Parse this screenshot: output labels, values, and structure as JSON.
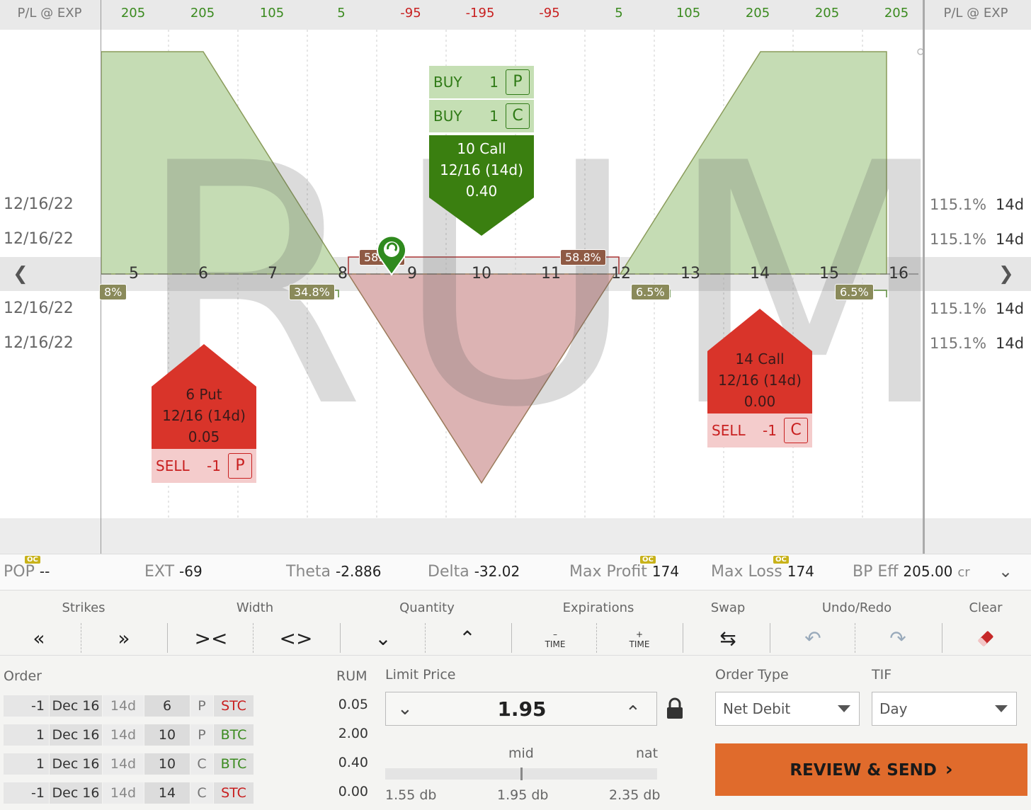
{
  "chart": {
    "pl_label_left": "P/L @ EXP",
    "pl_label_right": "P/L @ EXP",
    "pl_values": [
      "205",
      "205",
      "105",
      "5",
      "-95",
      "-195",
      "-95",
      "5",
      "105",
      "205",
      "205",
      "205"
    ],
    "pl_signs": [
      "pos",
      "pos",
      "pos",
      "pos",
      "neg",
      "neg",
      "neg",
      "pos",
      "pos",
      "pos",
      "pos",
      "pos"
    ],
    "strikes": [
      "5",
      "6",
      "7",
      "8",
      "9",
      "10",
      "11",
      "12",
      "13",
      "14",
      "15",
      "16"
    ],
    "watermark": "RUM",
    "expirations": [
      {
        "date": "12/16/22",
        "iv": "115.1%",
        "dte": "14d"
      },
      {
        "date": "12/16/22",
        "iv": "115.1%",
        "dte": "14d"
      },
      {
        "date": "12/16/22",
        "iv": "115.1%",
        "dte": "14d"
      },
      {
        "date": "12/16/22",
        "iv": "115.1%",
        "dte": "14d"
      }
    ],
    "prob_badges": {
      "left_cut": "8%",
      "left_inner": "34.8%",
      "mid_left": "58.8%",
      "mid_right": "58.8%",
      "right_inner": "6.5%",
      "right_outer": "6.5%"
    },
    "colors": {
      "profit": "#c5dcb4",
      "loss": "#dcb3b3",
      "buy": "#3a7f10",
      "sell": "#d9342a"
    }
  },
  "legs": {
    "top": {
      "rows": [
        {
          "action": "BUY",
          "qty": "1",
          "type": "P"
        },
        {
          "action": "BUY",
          "qty": "1",
          "type": "C"
        }
      ],
      "line1": "10 Call",
      "line2": "12/16 (14d)",
      "line3": "0.40"
    },
    "put": {
      "line1": "6 Put",
      "line2": "12/16 (14d)",
      "line3": "0.05",
      "action": "SELL",
      "qty": "-1",
      "type": "P"
    },
    "call": {
      "line1": "14 Call",
      "line2": "12/16 (14d)",
      "line3": "0.00",
      "action": "SELL",
      "qty": "-1",
      "type": "C"
    }
  },
  "stats": {
    "oc": "OC",
    "pop_label": "POP",
    "pop_value": "--",
    "ext_label": "EXT",
    "ext_value": "-69",
    "theta_label": "Theta",
    "theta_value": "-2.886",
    "delta_label": "Delta",
    "delta_value": "-32.02",
    "maxprofit_label": "Max Profit",
    "maxprofit_value": "174",
    "maxloss_label": "Max Loss",
    "maxloss_value": "174",
    "bp_label": "BP Eff",
    "bp_value": "205.00",
    "bp_suffix": "cr"
  },
  "toolbar": {
    "strikes": "Strikes",
    "width": "Width",
    "quantity": "Quantity",
    "expirations": "Expirations",
    "swap": "Swap",
    "undo_redo": "Undo/Redo",
    "clear": "Clear",
    "time_minus": "TIME",
    "time_plus": "TIME"
  },
  "order": {
    "title": "Order",
    "symbol": "RUM",
    "rows": [
      {
        "qty": "-1",
        "date": "Dec 16",
        "dte": "14d",
        "strike": "6",
        "pc": "P",
        "action": "STC",
        "price": "0.05"
      },
      {
        "qty": "1",
        "date": "Dec 16",
        "dte": "14d",
        "strike": "10",
        "pc": "P",
        "action": "BTC",
        "price": "2.00"
      },
      {
        "qty": "1",
        "date": "Dec 16",
        "dte": "14d",
        "strike": "10",
        "pc": "C",
        "action": "BTC",
        "price": "0.40"
      },
      {
        "qty": "-1",
        "date": "Dec 16",
        "dte": "14d",
        "strike": "14",
        "pc": "C",
        "action": "STC",
        "price": "0.00"
      }
    ],
    "limit_label": "Limit Price",
    "limit_value": "1.95",
    "mid_label": "mid",
    "nat_label": "nat",
    "low": "1.55 db",
    "mid": "1.95 db",
    "high": "2.35 db",
    "order_type_label": "Order Type",
    "order_type": "Net Debit",
    "tif_label": "TIF",
    "tif": "Day",
    "review": "REVIEW & SEND"
  }
}
